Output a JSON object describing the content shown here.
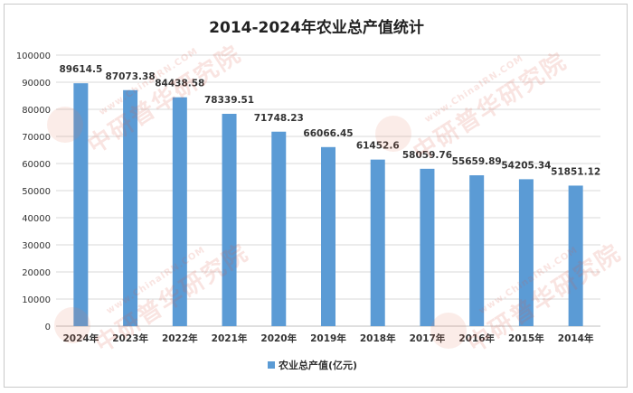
{
  "chart_data": {
    "type": "bar",
    "title": "2014-2024年农业总产值统计",
    "categories": [
      "2024年",
      "2023年",
      "2022年",
      "2021年",
      "2020年",
      "2019年",
      "2018年",
      "2017年",
      "2016年",
      "2015年",
      "2014年"
    ],
    "series": [
      {
        "name": "农业总产值(亿元)",
        "values": [
          89614.5,
          87073.38,
          84438.58,
          78339.51,
          71748.23,
          66066.45,
          61452.6,
          58059.76,
          55659.89,
          54205.34,
          51851.12
        ],
        "labels": [
          "89614.5",
          "87073.38",
          "84438.58",
          "78339.51",
          "71748.23",
          "66066.45",
          "61452.6",
          "58059.76",
          "55659.89",
          "54205.34",
          "51851.12"
        ]
      }
    ],
    "ylim": [
      0,
      100000
    ],
    "yticks": [
      "0",
      "10000",
      "20000",
      "30000",
      "40000",
      "50000",
      "60000",
      "70000",
      "80000",
      "90000",
      "100000"
    ],
    "grid": true,
    "legend_position": "bottom",
    "bar_color": "#5b9bd5"
  },
  "watermark": {
    "cn": "中研普华研究院",
    "en": "www.ChinaIRN.COM"
  }
}
